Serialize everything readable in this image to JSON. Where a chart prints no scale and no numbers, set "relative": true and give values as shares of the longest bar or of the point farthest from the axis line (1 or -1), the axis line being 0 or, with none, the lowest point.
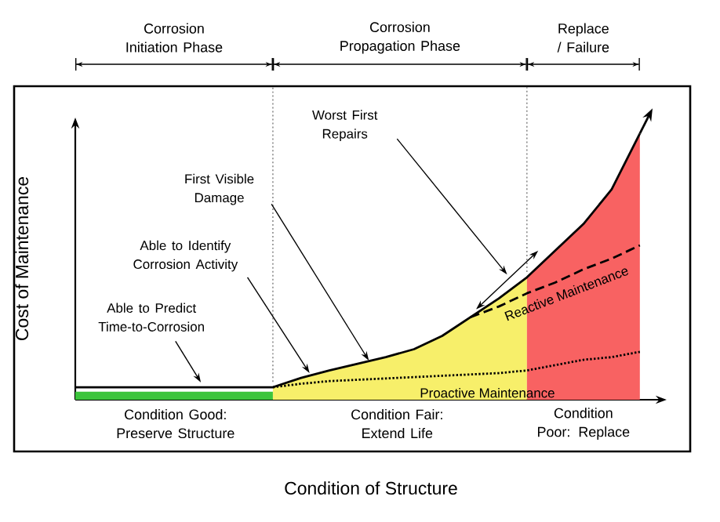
{
  "chart_data": {
    "type": "line",
    "relative": true,
    "tick_labels": false,
    "legend": "bottom right",
    "xlabel": "Condition of Structure",
    "ylabel": "Cost of Maintenance",
    "categories": [
      null,
      null,
      null,
      null,
      null,
      null,
      null,
      null,
      null,
      null,
      null,
      null,
      null,
      null,
      null,
      null,
      null,
      null,
      null,
      null,
      null
    ],
    "series": [
      {
        "type": "area",
        "color": "#3cc43c",
        "values": [
          0.03,
          0.03,
          0.03,
          0.03,
          0.03,
          0.03,
          0.03,
          0.03,
          null,
          null,
          null,
          null,
          null,
          null,
          null,
          null,
          null,
          null,
          null,
          null,
          null
        ]
      },
      {
        "type": "area",
        "color": "#f7ef6a",
        "values": [
          null,
          null,
          null,
          null,
          null,
          null,
          null,
          0.047,
          0.082,
          0.11,
          0.135,
          0.16,
          0.19,
          0.24,
          0.31,
          0.38,
          0.46,
          null,
          null,
          null,
          null
        ]
      },
      {
        "type": "area",
        "color": "#f86262",
        "values": [
          null,
          null,
          null,
          null,
          null,
          null,
          null,
          null,
          null,
          null,
          null,
          null,
          null,
          null,
          null,
          null,
          0.46,
          0.56,
          0.66,
          0.79,
          1
        ]
      },
      {
        "color": "#000000",
        "line_style": "solid",
        "values": [
          0.047,
          0.047,
          0.047,
          0.047,
          0.047,
          0.047,
          0.047,
          0.047,
          0.082,
          0.11,
          0.135,
          0.16,
          0.19,
          0.24,
          0.31,
          0.38,
          0.46,
          0.56,
          0.66,
          0.79,
          1
        ]
      },
      {
        "name": "Reactive Maintenance",
        "color": "#000000",
        "line_style": "dashed",
        "values": [
          null,
          null,
          null,
          null,
          null,
          null,
          null,
          null,
          null,
          null,
          null,
          null,
          null,
          null,
          0.31,
          0.35,
          0.4,
          0.44,
          0.49,
          0.53,
          0.58
        ]
      },
      {
        "name": "Proactive Maintenance",
        "color": "#000000",
        "line_style": "dotted",
        "values": [
          null,
          null,
          null,
          null,
          null,
          null,
          null,
          0.047,
          0.06,
          0.07,
          0.075,
          0.08,
          0.085,
          0.09,
          0.095,
          0.1,
          0.11,
          0.13,
          0.15,
          0.16,
          0.18
        ]
      }
    ],
    "annotations": [
      "Corrosion Initiation Phase",
      "Corrosion Propagation Phase",
      "Replace / Failure",
      "Able to Predict Time-to-Corrosion",
      "Able to Identify Corrosion Activity",
      "First Visible Damage",
      "Worst First Repairs",
      "Condition Good: Preserve Structure",
      "Condition Fair: Extend Life",
      "Condition Poor: Replace"
    ]
  }
}
